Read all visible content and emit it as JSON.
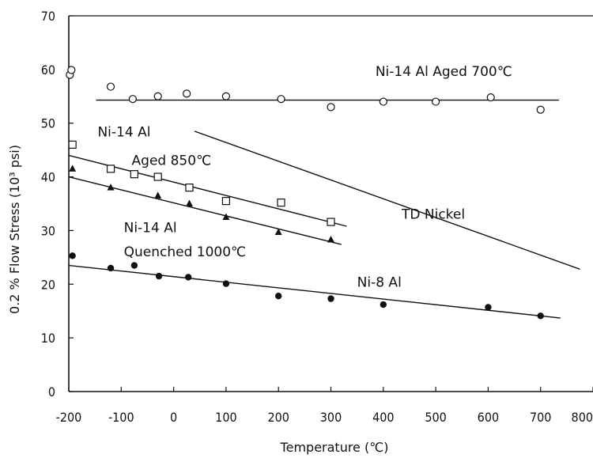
{
  "chart_data": {
    "type": "scatter",
    "title": "",
    "xlabel": "Temperature (℃)",
    "ylabel": "0.2 % Flow Stress (10³ psi)",
    "xlim": [
      -200,
      800
    ],
    "ylim": [
      0,
      70
    ],
    "x_ticks": [
      -200,
      -100,
      0,
      100,
      200,
      300,
      400,
      500,
      600,
      700,
      800
    ],
    "y_ticks": [
      0,
      10,
      20,
      30,
      40,
      50,
      60,
      70
    ],
    "grid": false,
    "series": [
      {
        "name": "Ni-14 Al Aged 700℃",
        "marker": "open-circle",
        "points": [
          [
            -198,
            59
          ],
          [
            -195,
            59.9
          ],
          [
            -120,
            56.8
          ],
          [
            -78,
            54.5
          ],
          [
            -30,
            55
          ],
          [
            25,
            55.5
          ],
          [
            100,
            55
          ],
          [
            205,
            54.5
          ],
          [
            300,
            53
          ],
          [
            400,
            54
          ],
          [
            500,
            54
          ],
          [
            605,
            54.8
          ],
          [
            700,
            52.5
          ]
        ],
        "fit": [
          [
            -148,
            54.3
          ],
          [
            735,
            54.3
          ]
        ]
      },
      {
        "name": "Ni-14 Al Aged 850℃",
        "marker": "open-square",
        "points": [
          [
            -193,
            46
          ],
          [
            -120,
            41.5
          ],
          [
            -75,
            40.5
          ],
          [
            -30,
            40
          ],
          [
            30,
            38
          ],
          [
            100,
            35.5
          ],
          [
            205,
            35.2
          ],
          [
            300,
            31.6
          ]
        ],
        "fit": [
          [
            -200,
            44
          ],
          [
            330,
            30.8
          ]
        ]
      },
      {
        "name": "Ni-14 Al Quenched 1000℃",
        "marker": "filled-triangle",
        "points": [
          [
            -193,
            41.5
          ],
          [
            -120,
            38
          ],
          [
            -30,
            36.5
          ],
          [
            30,
            35
          ],
          [
            100,
            32.5
          ],
          [
            200,
            29.7
          ],
          [
            300,
            28.3
          ]
        ],
        "fit": [
          [
            -200,
            40
          ],
          [
            320,
            27.4
          ]
        ]
      },
      {
        "name": "Ni-8 Al",
        "marker": "filled-circle",
        "points": [
          [
            -193,
            25.3
          ],
          [
            -120,
            23
          ],
          [
            -75,
            23.5
          ],
          [
            -28,
            21.5
          ],
          [
            28,
            21.3
          ],
          [
            100,
            20.1
          ],
          [
            200,
            17.8
          ],
          [
            300,
            17.3
          ],
          [
            400,
            16.2
          ],
          [
            600,
            15.7
          ],
          [
            700,
            14.1
          ]
        ],
        "fit": [
          [
            -200,
            23.5
          ],
          [
            738,
            13.7
          ]
        ]
      },
      {
        "name": "TD Nickel",
        "marker": "none",
        "points": [],
        "fit": [
          [
            40,
            48.5
          ],
          [
            775,
            22.8
          ]
        ]
      }
    ],
    "annotations": [
      {
        "text": "Ni-14 Al  Aged 700℃",
        "x": 385,
        "y": 58.8
      },
      {
        "text": "Ni-14 Al",
        "x": -145,
        "y": 47.5
      },
      {
        "text": "Aged 850℃",
        "x": -80,
        "y": 42.2
      },
      {
        "text": "Ni-14 Al",
        "x": -95,
        "y": 29.7
      },
      {
        "text": "Quenched  1000℃",
        "x": -95,
        "y": 25.2
      },
      {
        "text": "TD Nickel",
        "x": 435,
        "y": 32.2
      },
      {
        "text": "Ni-8 Al",
        "x": 350,
        "y": 19.5
      }
    ]
  }
}
